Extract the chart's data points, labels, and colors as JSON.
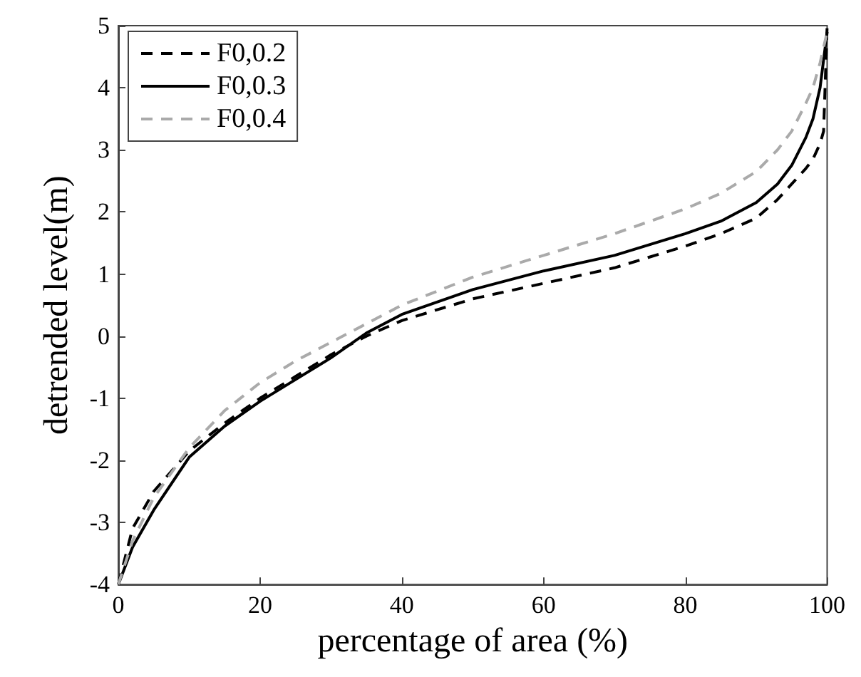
{
  "chart_data": {
    "type": "line",
    "xlabel": "percentage of area (%)",
    "ylabel": "detrended level(m)",
    "xlim": [
      0,
      100
    ],
    "xticks": [
      0,
      20,
      40,
      60,
      80,
      100
    ],
    "ylim": [
      -4,
      5
    ],
    "yticks": [
      -4,
      -3,
      -2,
      -1,
      0,
      1,
      2,
      3,
      4,
      5
    ],
    "grid": false,
    "legend": "top left",
    "marker": "none",
    "series": [
      {
        "name": "F0,0.2",
        "color": "#000000",
        "line_style": "dashed",
        "x": [
          0,
          2,
          5,
          10,
          15,
          20,
          25,
          30,
          35,
          40,
          50,
          60,
          70,
          80,
          85,
          90,
          93,
          95,
          97,
          98,
          99,
          99.5,
          100
        ],
        "values": [
          -4,
          -3.1,
          -2.5,
          -1.85,
          -1.4,
          -1.0,
          -0.65,
          -0.3,
          0.0,
          0.25,
          0.6,
          0.85,
          1.1,
          1.45,
          1.65,
          1.9,
          2.2,
          2.45,
          2.7,
          2.85,
          3.1,
          3.3,
          5
        ]
      },
      {
        "name": "F0,0.3",
        "color": "#000000",
        "line_style": "solid",
        "x": [
          0,
          2,
          5,
          10,
          15,
          20,
          25,
          30,
          35,
          40,
          50,
          60,
          70,
          80,
          85,
          90,
          93,
          95,
          97,
          98,
          99,
          100
        ],
        "values": [
          -4,
          -3.4,
          -2.8,
          -1.95,
          -1.45,
          -1.05,
          -0.7,
          -0.35,
          0.05,
          0.35,
          0.75,
          1.05,
          1.3,
          1.65,
          1.85,
          2.15,
          2.45,
          2.75,
          3.2,
          3.5,
          4.0,
          4.9
        ]
      },
      {
        "name": "F0,0.4",
        "color": "#aaaaaa",
        "line_style": "dashed",
        "x": [
          0,
          2,
          5,
          10,
          15,
          20,
          25,
          30,
          40,
          50,
          60,
          70,
          80,
          85,
          90,
          93,
          95,
          97,
          98,
          99,
          100
        ],
        "values": [
          -4,
          -3.3,
          -2.6,
          -1.8,
          -1.2,
          -0.75,
          -0.4,
          -0.1,
          0.5,
          0.95,
          1.3,
          1.65,
          2.05,
          2.3,
          2.65,
          3.0,
          3.3,
          3.75,
          4.0,
          4.4,
          4.9
        ]
      }
    ]
  }
}
